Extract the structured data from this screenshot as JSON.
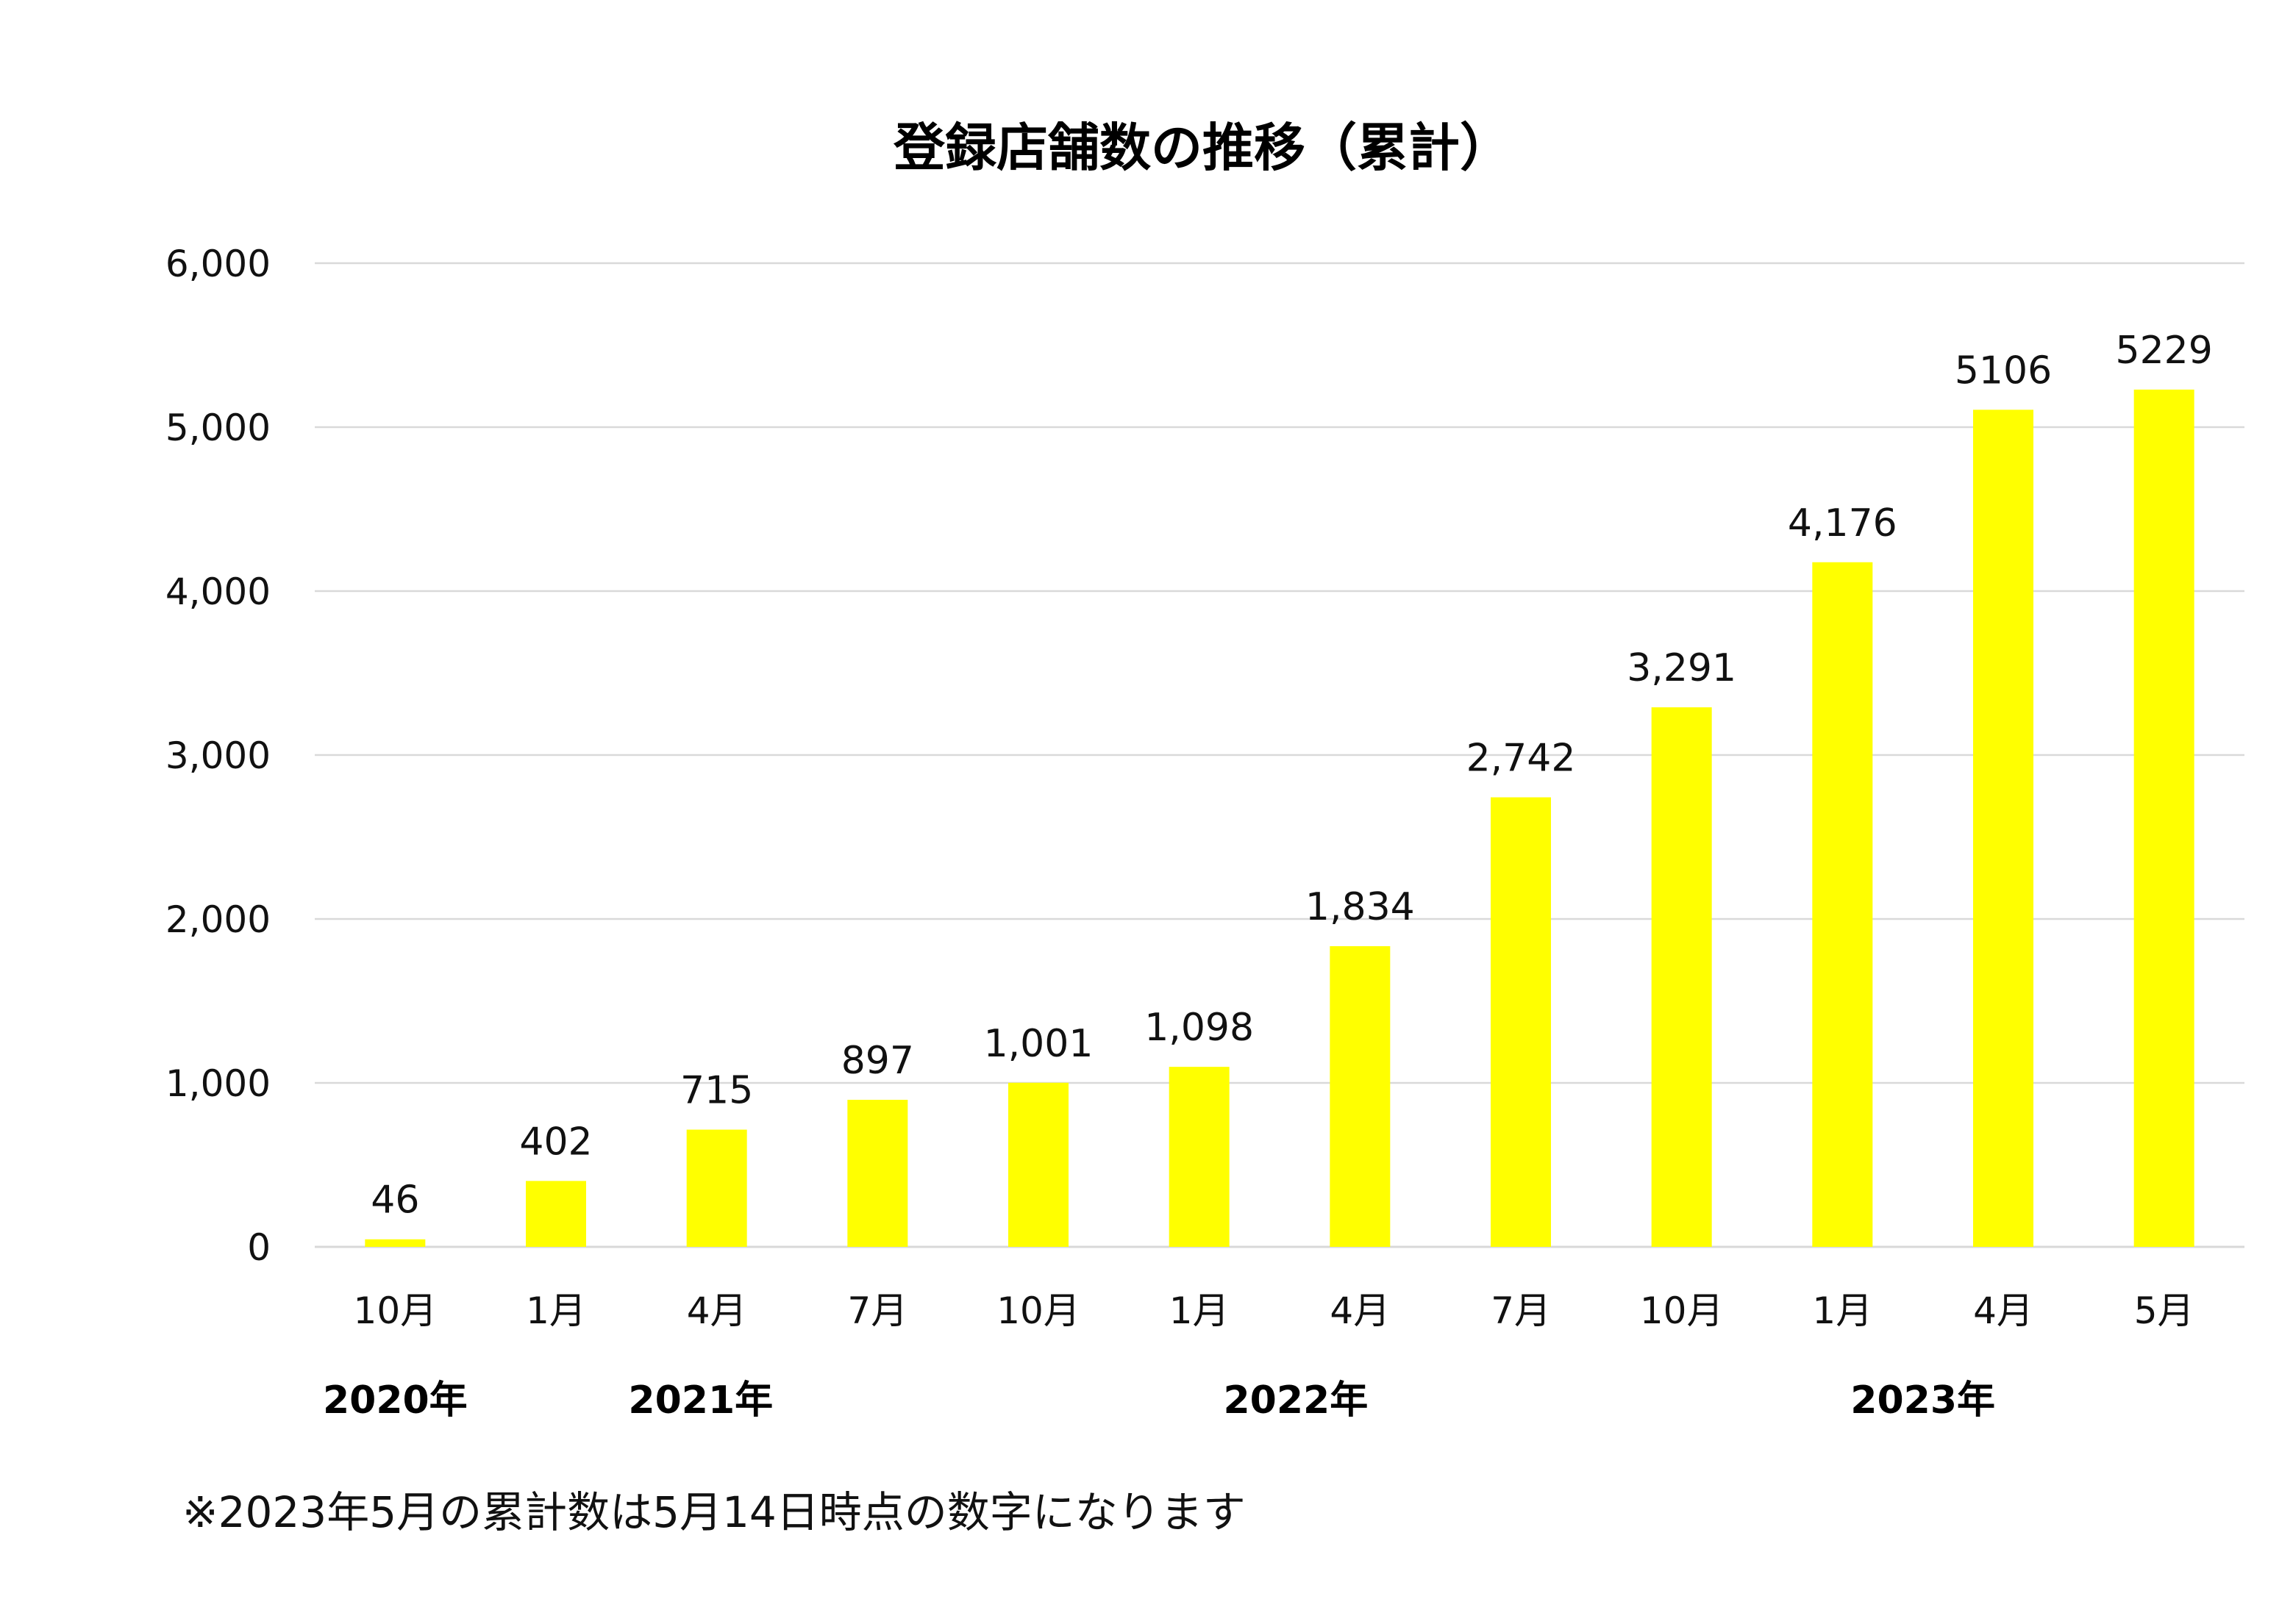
{
  "chart_data": {
    "type": "bar",
    "title": "登録店舗数の推移（累計）",
    "xlabel": "",
    "ylabel": "",
    "ylim": [
      0,
      6000
    ],
    "yticks": [
      "0",
      "1,000",
      "2,000",
      "3,000",
      "4,000",
      "5,000",
      "6,000"
    ],
    "grid": true,
    "categories": [
      "10月",
      "1月",
      "4月",
      "7月",
      "10月",
      "1月",
      "4月",
      "7月",
      "10月",
      "1月",
      "4月",
      "5月"
    ],
    "values": [
      46,
      402,
      715,
      897,
      1001,
      1098,
      1834,
      2742,
      3291,
      4176,
      5106,
      5229
    ],
    "data_labels": [
      "46",
      "402",
      "715",
      "897",
      "1,001",
      "1,098",
      "1,834",
      "2,742",
      "3,291",
      "4,176",
      "5106",
      "5229"
    ],
    "year_labels": [
      {
        "label": "2020年",
        "category_index": 0
      },
      {
        "label": "2021年",
        "category_index": 1.9
      },
      {
        "label": "2022年",
        "category_index": 5.6
      },
      {
        "label": "2023年",
        "category_index": 9.5
      }
    ],
    "bar_color": "#ffff00",
    "grid_color": "#d9d9d9"
  },
  "footnote": "※2023年5月の累計数は5月14日時点の数字になります"
}
